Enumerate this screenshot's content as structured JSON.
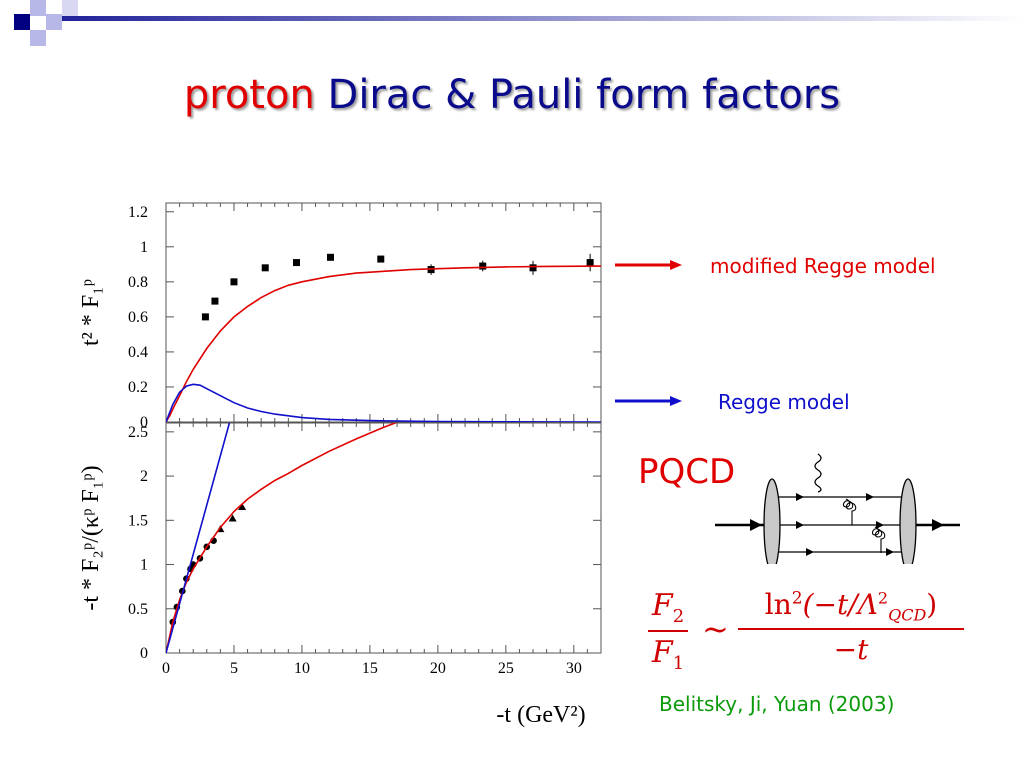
{
  "slide": {
    "title_highlight": "proton",
    "title_rest": "Dirac & Pauli form factors",
    "legend": {
      "modified_label": "modified  Regge model",
      "modified_color": "#e00000",
      "regge_label": "Regge model",
      "regge_color": "#1010cc"
    },
    "pqcd_label": "PQCD",
    "formula": {
      "lhs_num": "F",
      "lhs_num_sub": "2",
      "lhs_den": "F",
      "lhs_den_sub": "1",
      "relation": "~",
      "rhs_num_prefix": "ln",
      "rhs_num_exp": "2",
      "rhs_num_body": "(−t/Λ",
      "rhs_num_lambda_exp": "2",
      "rhs_num_lambda_sub": "QCD",
      "rhs_num_close": ")",
      "rhs_den": "−t"
    },
    "citation": "Belitsky, Ji, Yuan (2003)"
  },
  "chart_data": [
    {
      "type": "scatter",
      "panel": "top",
      "ylabel": "t² * F₁ᵖ",
      "xlim": [
        0,
        32
      ],
      "ylim": [
        0,
        1.25
      ],
      "yticks": [
        "0",
        "0.2",
        "0.4",
        "0.6",
        "0.8",
        "1",
        "1.2"
      ],
      "ytick_values": [
        0,
        0.2,
        0.4,
        0.6,
        0.8,
        1.0,
        1.2
      ],
      "series": [
        {
          "kind": "points",
          "marker": "square",
          "color": "#000000",
          "x": [
            2.9,
            3.6,
            5.0,
            7.3,
            9.6,
            12.1,
            15.8,
            19.5,
            23.3,
            27.0,
            31.2
          ],
          "y": [
            0.6,
            0.69,
            0.8,
            0.88,
            0.91,
            0.94,
            0.93,
            0.87,
            0.89,
            0.88,
            0.91
          ],
          "err": [
            0.01,
            0.01,
            0.01,
            0.01,
            0.01,
            0.01,
            0.01,
            0.03,
            0.03,
            0.04,
            0.05
          ]
        },
        {
          "name": "modified  Regge model",
          "kind": "curve",
          "color": "#e00000",
          "x": [
            0,
            0.3,
            0.6,
            1,
            1.5,
            2,
            3,
            4,
            5,
            6,
            7,
            8,
            9,
            10,
            12,
            14,
            16,
            18,
            20,
            22,
            25,
            28,
            32
          ],
          "y": [
            0,
            0.04,
            0.09,
            0.15,
            0.23,
            0.3,
            0.42,
            0.52,
            0.6,
            0.66,
            0.71,
            0.75,
            0.78,
            0.8,
            0.83,
            0.85,
            0.86,
            0.87,
            0.875,
            0.88,
            0.885,
            0.888,
            0.89
          ]
        },
        {
          "name": "Regge model",
          "kind": "curve",
          "color": "#1010cc",
          "x": [
            0,
            0.5,
            1,
            1.5,
            2,
            2.5,
            3,
            4,
            5,
            6,
            7,
            8,
            10,
            12,
            15,
            20,
            25,
            32
          ],
          "y": [
            0,
            0.1,
            0.17,
            0.205,
            0.215,
            0.21,
            0.19,
            0.15,
            0.11,
            0.08,
            0.06,
            0.045,
            0.025,
            0.015,
            0.008,
            0.003,
            0.001,
            0
          ]
        }
      ]
    },
    {
      "type": "scatter",
      "panel": "bottom",
      "ylabel": "-t * F₂ᵖ/(κᵖ F₁ᵖ)",
      "xlabel": "-t (GeV²)",
      "xlim": [
        0,
        32
      ],
      "ylim": [
        0,
        2.6
      ],
      "xticks": [
        "0",
        "5",
        "10",
        "15",
        "20",
        "25",
        "30"
      ],
      "xtick_values": [
        0,
        5,
        10,
        15,
        20,
        25,
        30
      ],
      "yticks": [
        "0",
        "0.5",
        "1",
        "1.5",
        "2",
        "2.5"
      ],
      "ytick_values": [
        0,
        0.5,
        1.0,
        1.5,
        2.0,
        2.5
      ],
      "series": [
        {
          "kind": "points",
          "marker": "circle",
          "color": "#000000",
          "x": [
            0.5,
            0.8,
            1.2,
            1.5,
            1.8,
            2.0,
            2.5,
            3.0,
            3.5
          ],
          "y": [
            0.35,
            0.52,
            0.7,
            0.84,
            0.95,
            1.0,
            1.07,
            1.2,
            1.27
          ]
        },
        {
          "kind": "points",
          "marker": "triangle",
          "color": "#000000",
          "x": [
            4.0,
            4.9,
            5.6
          ],
          "y": [
            1.4,
            1.52,
            1.65
          ]
        },
        {
          "name": "modified  Regge model",
          "kind": "curve",
          "color": "#e00000",
          "x": [
            0,
            0.5,
            1,
            1.5,
            2,
            3,
            4,
            5,
            6,
            7,
            8,
            9,
            10,
            12,
            14,
            16,
            17.2
          ],
          "y": [
            0,
            0.35,
            0.6,
            0.8,
            0.95,
            1.2,
            1.42,
            1.6,
            1.74,
            1.85,
            1.95,
            2.03,
            2.12,
            2.28,
            2.42,
            2.55,
            2.62
          ]
        },
        {
          "name": "Regge model",
          "kind": "curve",
          "color": "#1010cc",
          "x": [
            0,
            4.7
          ],
          "y": [
            0,
            2.62
          ]
        }
      ]
    }
  ]
}
